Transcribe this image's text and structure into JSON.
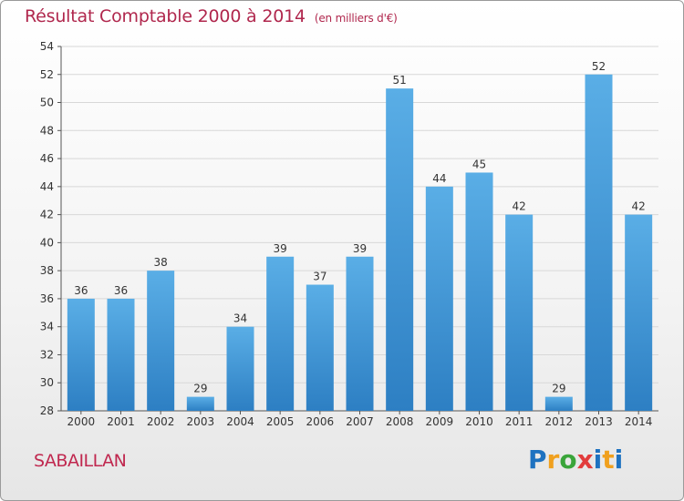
{
  "title": "Résultat Comptable 2000 à 2014",
  "title_unit": "(en milliers d'€)",
  "town": "SABAILLAN",
  "logo": {
    "text": "Proxiti",
    "letters": [
      "P",
      "r",
      "o",
      "x",
      "i",
      "t",
      "i"
    ],
    "colors": [
      "#1e72c0",
      "#f0a01e",
      "#3aa53a",
      "#e23c3c",
      "#1e72c0",
      "#f0a01e",
      "#1e72c0"
    ]
  },
  "colors": {
    "bar_light": "#5aaee6",
    "bar_dark": "#2d7fc3",
    "grid": "#d8d8d8",
    "axis_text": "#333333"
  },
  "chart_data": {
    "type": "bar",
    "categories": [
      "2000",
      "2001",
      "2002",
      "2003",
      "2004",
      "2005",
      "2006",
      "2007",
      "2008",
      "2009",
      "2010",
      "2011",
      "2012",
      "2013",
      "2014"
    ],
    "values": [
      36,
      36,
      38,
      29,
      34,
      39,
      37,
      39,
      51,
      44,
      45,
      42,
      29,
      52,
      42
    ],
    "title": "Résultat Comptable 2000 à 2014",
    "xlabel": "",
    "ylabel": "",
    "ylim": [
      28,
      54
    ],
    "yticks": [
      28,
      30,
      32,
      34,
      36,
      38,
      40,
      42,
      44,
      46,
      48,
      50,
      52,
      54
    ],
    "grid": true,
    "data_labels": true
  }
}
